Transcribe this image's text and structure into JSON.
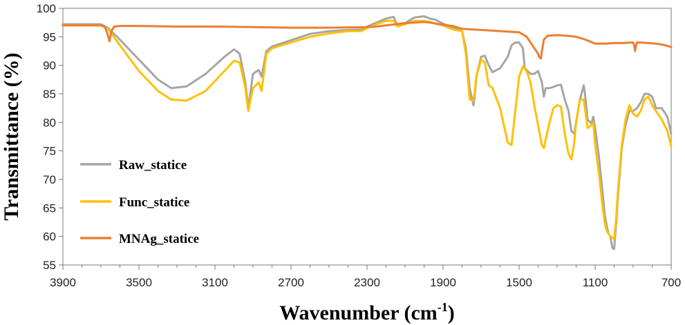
{
  "chart_data": {
    "type": "line",
    "title": "",
    "xlabel": "Wavenumber (cm-1)",
    "xlabel_main": "Wavenumber (cm",
    "xlabel_sup": "-1",
    "xlabel_tail": ")",
    "ylabel": "Transmittance (%)",
    "xlim": [
      3900,
      700
    ],
    "ylim": [
      55,
      100
    ],
    "x_ticks": [
      3900,
      3500,
      3100,
      2700,
      2300,
      1900,
      1500,
      1100,
      700
    ],
    "y_ticks": [
      55,
      60,
      65,
      70,
      75,
      80,
      85,
      90,
      95,
      100
    ],
    "grid": false,
    "legend_position": "left",
    "series": [
      {
        "name": "Raw_statice",
        "color": "#A5A5A5",
        "x": [
          3900,
          3700,
          3660,
          3600,
          3500,
          3400,
          3330,
          3250,
          3150,
          3050,
          3000,
          2970,
          2940,
          2925,
          2900,
          2870,
          2855,
          2830,
          2800,
          2700,
          2600,
          2500,
          2400,
          2330,
          2300,
          2250,
          2200,
          2160,
          2140,
          2100,
          2050,
          2000,
          1970,
          1940,
          1900,
          1850,
          1800,
          1780,
          1760,
          1740,
          1735,
          1725,
          1700,
          1680,
          1660,
          1640,
          1600,
          1560,
          1540,
          1520,
          1500,
          1480,
          1470,
          1455,
          1440,
          1420,
          1400,
          1380,
          1370,
          1360,
          1340,
          1320,
          1300,
          1280,
          1260,
          1240,
          1225,
          1210,
          1200,
          1180,
          1160,
          1150,
          1140,
          1120,
          1110,
          1100,
          1080,
          1070,
          1060,
          1050,
          1040,
          1030,
          1020,
          1010,
          1000,
          990,
          980,
          960,
          940,
          920,
          900,
          880,
          860,
          840,
          820,
          800,
          780,
          750,
          720,
          700
        ],
        "y": [
          97.2,
          97.2,
          96.5,
          94.5,
          91.0,
          87.5,
          86.0,
          86.3,
          88.5,
          91.5,
          92.8,
          92.0,
          87.0,
          82.5,
          88.5,
          89.2,
          88.0,
          92.5,
          93.3,
          94.4,
          95.5,
          96.0,
          96.2,
          96.3,
          96.8,
          97.5,
          98.2,
          98.5,
          97.0,
          97.4,
          98.4,
          98.6,
          98.2,
          98.0,
          97.3,
          96.6,
          96.0,
          93.0,
          86.0,
          83.0,
          84.0,
          88.0,
          91.5,
          91.7,
          90.0,
          88.8,
          89.5,
          91.5,
          93.5,
          94.0,
          94.0,
          93.0,
          89.5,
          89.0,
          88.5,
          88.5,
          89.0,
          87.0,
          84.5,
          86.0,
          86.0,
          86.2,
          86.5,
          86.6,
          84.0,
          82.0,
          78.5,
          78.0,
          80.0,
          84.0,
          86.5,
          84.0,
          80.5,
          79.8,
          81.0,
          79.0,
          74.0,
          70.5,
          67.5,
          64.0,
          62.0,
          60.5,
          60.0,
          58.0,
          57.8,
          62.0,
          67.0,
          75.5,
          79.5,
          82.0,
          82.0,
          82.5,
          83.5,
          85.0,
          85.0,
          84.5,
          82.5,
          82.5,
          81.0,
          78.0
        ]
      },
      {
        "name": "Func_statice",
        "color": "#FFC000",
        "x": [
          3900,
          3700,
          3660,
          3600,
          3500,
          3400,
          3330,
          3250,
          3150,
          3050,
          3000,
          2970,
          2940,
          2925,
          2900,
          2870,
          2855,
          2830,
          2800,
          2700,
          2600,
          2500,
          2400,
          2330,
          2300,
          2250,
          2200,
          2160,
          2140,
          2100,
          2050,
          2000,
          1970,
          1940,
          1900,
          1850,
          1800,
          1780,
          1760,
          1740,
          1735,
          1725,
          1700,
          1680,
          1660,
          1640,
          1600,
          1560,
          1540,
          1520,
          1500,
          1480,
          1470,
          1455,
          1440,
          1420,
          1400,
          1380,
          1370,
          1360,
          1340,
          1320,
          1300,
          1280,
          1260,
          1240,
          1225,
          1210,
          1200,
          1180,
          1160,
          1150,
          1140,
          1120,
          1110,
          1100,
          1080,
          1070,
          1060,
          1050,
          1040,
          1030,
          1020,
          1010,
          1000,
          990,
          980,
          960,
          940,
          920,
          900,
          880,
          860,
          840,
          820,
          800,
          780,
          750,
          720,
          700
        ],
        "y": [
          97.0,
          97.0,
          96.3,
          93.5,
          89.0,
          85.5,
          84.0,
          83.8,
          85.5,
          89.0,
          90.8,
          90.5,
          86.0,
          82.0,
          86.0,
          87.0,
          85.5,
          92.0,
          93.0,
          94.0,
          95.0,
          95.6,
          96.0,
          96.0,
          96.5,
          97.2,
          97.8,
          97.8,
          96.8,
          97.2,
          97.8,
          97.8,
          97.6,
          97.3,
          97.0,
          96.3,
          96.0,
          92.0,
          84.0,
          83.8,
          85.0,
          88.0,
          91.0,
          90.5,
          86.5,
          86.0,
          82.5,
          76.5,
          76.0,
          82.0,
          88.0,
          89.8,
          89.5,
          88.5,
          87.0,
          83.0,
          79.5,
          76.0,
          75.5,
          77.0,
          80.0,
          82.5,
          83.0,
          82.8,
          78.0,
          74.5,
          73.5,
          76.5,
          80.0,
          84.0,
          84.0,
          81.5,
          79.0,
          79.5,
          80.0,
          76.0,
          71.0,
          68.0,
          65.0,
          62.5,
          61.0,
          60.5,
          60.0,
          59.8,
          59.5,
          63.0,
          68.0,
          76.0,
          80.5,
          83.0,
          81.5,
          81.0,
          82.0,
          84.0,
          84.5,
          83.0,
          82.0,
          80.5,
          78.5,
          75.8
        ]
      },
      {
        "name": "MNAg_statice",
        "color": "#ED7D31",
        "x": [
          3900,
          3700,
          3680,
          3665,
          3655,
          3645,
          3630,
          3600,
          3500,
          3300,
          3100,
          2900,
          2700,
          2500,
          2300,
          2250,
          2200,
          2150,
          2100,
          2050,
          2000,
          1950,
          1900,
          1850,
          1800,
          1700,
          1600,
          1500,
          1460,
          1440,
          1420,
          1400,
          1395,
          1385,
          1380,
          1370,
          1350,
          1300,
          1250,
          1200,
          1150,
          1100,
          1050,
          1000,
          950,
          910,
          900,
          895,
          890,
          885,
          880,
          860,
          820,
          780,
          740,
          700
        ],
        "y": [
          97.0,
          97.0,
          96.8,
          95.5,
          94.2,
          96.0,
          96.8,
          96.9,
          96.9,
          96.8,
          96.8,
          96.7,
          96.6,
          96.6,
          96.7,
          96.8,
          97.0,
          97.2,
          97.4,
          97.5,
          97.6,
          97.4,
          97.1,
          96.9,
          96.4,
          96.2,
          96.0,
          95.8,
          95.0,
          94.0,
          93.0,
          92.0,
          91.5,
          91.2,
          92.5,
          94.5,
          95.2,
          95.3,
          95.2,
          95.0,
          94.5,
          93.8,
          93.8,
          93.9,
          93.9,
          94.0,
          94.0,
          93.5,
          92.5,
          93.5,
          94.0,
          94.0,
          93.9,
          93.8,
          93.6,
          93.2
        ]
      }
    ]
  }
}
